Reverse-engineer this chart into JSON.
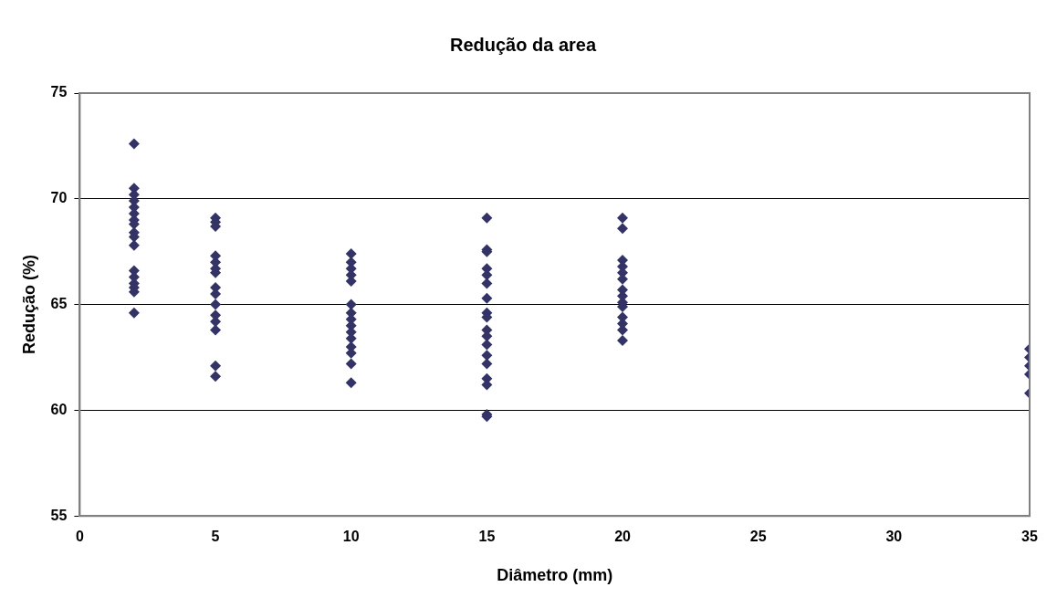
{
  "chart_data": {
    "type": "scatter",
    "title": "Redução da area",
    "xlabel": "Diâmetro (mm)",
    "ylabel": "Redução (%)",
    "xlim": [
      0,
      35
    ],
    "xticks": [
      0,
      5,
      10,
      15,
      20,
      25,
      30,
      35
    ],
    "ylim": [
      55,
      75
    ],
    "yticks": [
      55,
      60,
      65,
      70,
      75
    ],
    "grid": "y",
    "marker": "diamond",
    "series": [
      {
        "color": "#333366",
        "x": [
          2,
          2,
          2,
          2,
          2,
          2,
          2,
          2,
          2,
          2,
          2,
          2,
          2,
          2,
          2,
          2,
          2,
          5,
          5,
          5,
          5,
          5,
          5,
          5,
          5,
          5,
          5,
          5,
          5,
          5,
          5,
          5,
          10,
          10,
          10,
          10,
          10,
          10,
          10,
          10,
          10,
          10,
          10,
          10,
          10,
          10,
          10,
          15,
          15,
          15,
          15,
          15,
          15,
          15,
          15,
          15,
          15,
          15,
          15,
          15,
          15,
          15,
          15,
          15,
          15,
          20,
          20,
          20,
          20,
          20,
          20,
          20,
          20,
          20,
          20,
          20,
          20,
          20,
          20,
          35,
          35,
          35,
          35,
          35
        ],
        "values": [
          72.6,
          70.5,
          70.2,
          69.9,
          69.6,
          69.3,
          69.0,
          68.8,
          68.4,
          68.2,
          67.8,
          66.6,
          66.3,
          66.0,
          65.8,
          65.6,
          64.6,
          69.1,
          68.9,
          68.7,
          67.3,
          67.0,
          66.7,
          66.5,
          65.8,
          65.5,
          65.0,
          64.5,
          64.2,
          63.8,
          62.1,
          61.6,
          67.4,
          67.0,
          66.7,
          66.4,
          66.1,
          65.0,
          64.6,
          64.3,
          64.0,
          63.7,
          63.4,
          63.0,
          62.7,
          62.2,
          61.3,
          69.1,
          67.6,
          67.5,
          66.7,
          66.4,
          66.0,
          65.3,
          64.6,
          64.4,
          63.8,
          63.5,
          63.1,
          62.6,
          62.2,
          61.5,
          61.2,
          59.8,
          59.7,
          69.1,
          68.6,
          67.1,
          66.8,
          66.5,
          66.2,
          65.7,
          65.4,
          65.1,
          64.9,
          64.4,
          64.1,
          63.8,
          63.3,
          62.9,
          62.5,
          62.1,
          61.7,
          60.8
        ]
      }
    ]
  }
}
